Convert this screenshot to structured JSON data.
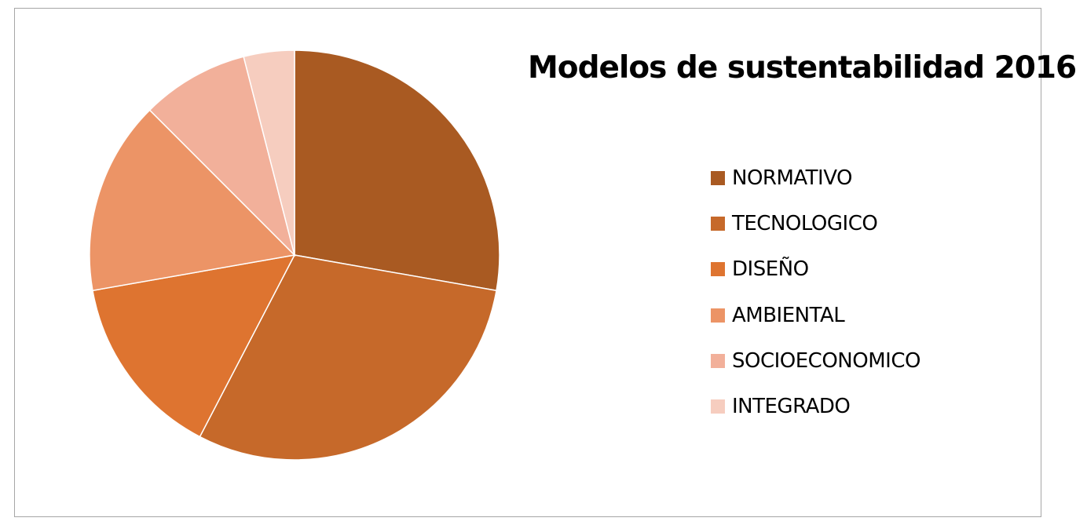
{
  "chart_data": {
    "type": "pie",
    "title": "Modelos de sustentabilidad 2016",
    "legend_position": "right",
    "categories": [
      "NORMATIVO",
      "TECNOLOGICO",
      "DISEÑO",
      "AMBIENTAL",
      "SOCIOECONOMICO",
      "INTEGRADO"
    ],
    "values": [
      27.8,
      29.9,
      14.6,
      15.3,
      8.5,
      4.0
    ],
    "colors": [
      "#A95A22",
      "#C6692A",
      "#DE7430",
      "#EC9466",
      "#F2B09A",
      "#F6CDBF"
    ],
    "start_angle_deg": 0,
    "direction": "clockwise"
  }
}
